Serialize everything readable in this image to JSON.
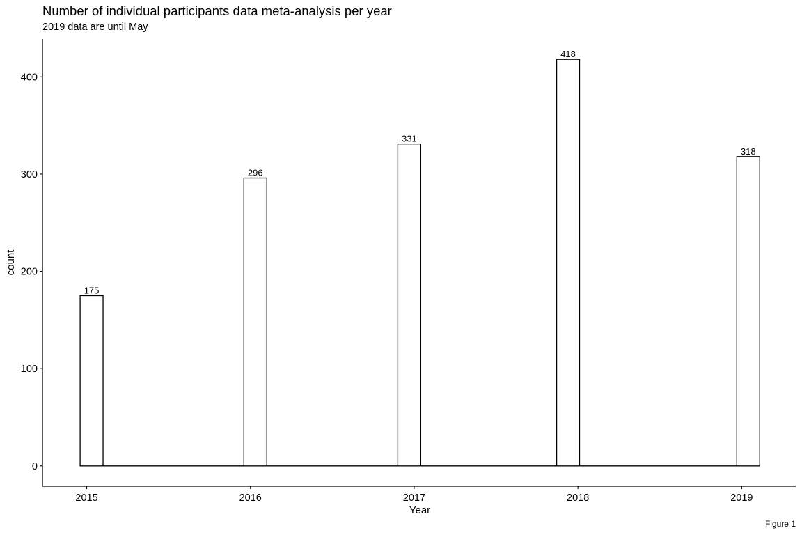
{
  "chart_data": {
    "type": "histogram",
    "title": "Number of individual participants data meta-analysis per year",
    "subtitle": "2019 data are until May",
    "caption": "Figure 1",
    "xlabel": "Year",
    "ylabel": "count",
    "x_ticks": [
      "2015",
      "2016",
      "2017",
      "2018",
      "2019"
    ],
    "y_ticks": [
      "0",
      "100",
      "200",
      "300",
      "400"
    ],
    "xlim": [
      2014.73,
      2019.33
    ],
    "ylim": [
      -20.9,
      438.9
    ],
    "bins": [
      {
        "x0": 2014.96,
        "x1": 2015.1,
        "value": 175,
        "label": "175"
      },
      {
        "x0": 2015.96,
        "x1": 2016.1,
        "value": 296,
        "label": "296"
      },
      {
        "x0": 2016.9,
        "x1": 2017.04,
        "value": 331,
        "label": "331"
      },
      {
        "x0": 2017.87,
        "x1": 2018.01,
        "value": 418,
        "label": "418"
      },
      {
        "x0": 2018.97,
        "x1": 2019.11,
        "value": 318,
        "label": "318"
      }
    ],
    "baseline_range": [
      2014.96,
      2019.11
    ],
    "bar_fill": "#ffffff",
    "bar_stroke": "#000000",
    "grid": false,
    "legend": "none"
  }
}
